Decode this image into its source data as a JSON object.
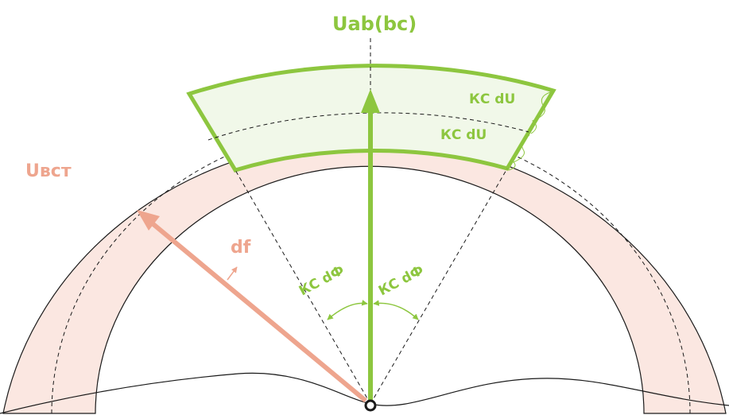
{
  "labels": {
    "top": "Uab(bc)",
    "left": "Uвст",
    "vector_name": "df",
    "kc_du_outer": "КС dU",
    "kc_du_inner": "КС dU",
    "kc_dphi_left": "КС dФ",
    "kc_dphi_right": "КС dФ"
  },
  "colors": {
    "green": "#8dc63f",
    "green_fill": "#f1f8e9",
    "salmon": "#eea58e",
    "salmon_fill": "#fbe7e1",
    "line": "#1a1a1a"
  }
}
